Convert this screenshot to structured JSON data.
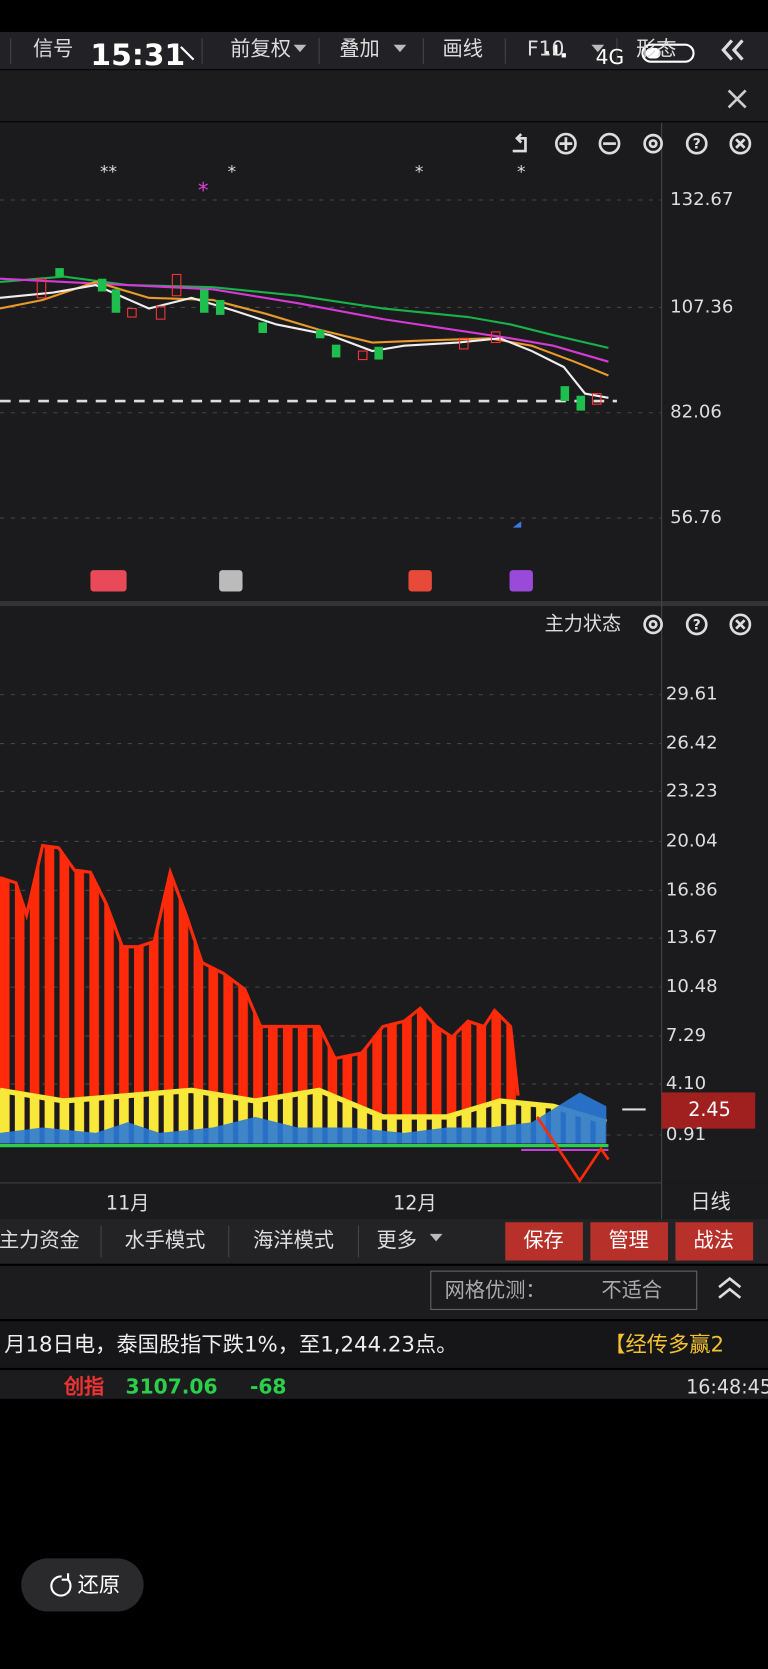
{
  "status": {
    "time": "15:31",
    "network": "4G"
  },
  "toolbar": {
    "items": [
      "信号",
      "前复权",
      "叠加",
      "画线",
      "F10",
      "形态"
    ]
  },
  "price_axis": [
    "132.67",
    "107.36",
    "82.06",
    "56.76"
  ],
  "indicator": {
    "title": "主力状态",
    "axis": [
      "29.61",
      "26.42",
      "23.23",
      "20.04",
      "16.86",
      "13.67",
      "10.48",
      "7.29",
      "4.10",
      "0.91"
    ],
    "current": "2.45"
  },
  "x_axis": [
    "11月",
    "12月"
  ],
  "period": "日线",
  "tabs": [
    "主力资金",
    "水手模式",
    "海洋模式",
    "更多"
  ],
  "buttons": [
    "保存",
    "管理",
    "战法"
  ],
  "grid_test": {
    "label": "网格优测：",
    "value": "不适合"
  },
  "news": {
    "text": "月18日电，泰国股指下跌1%，至1,244.23点。",
    "tag": "【经传多赢2"
  },
  "ticker": {
    "name": "创指",
    "price": "3107.06",
    "change": "-68",
    "time": "16:48:45"
  },
  "restore": "还原"
}
